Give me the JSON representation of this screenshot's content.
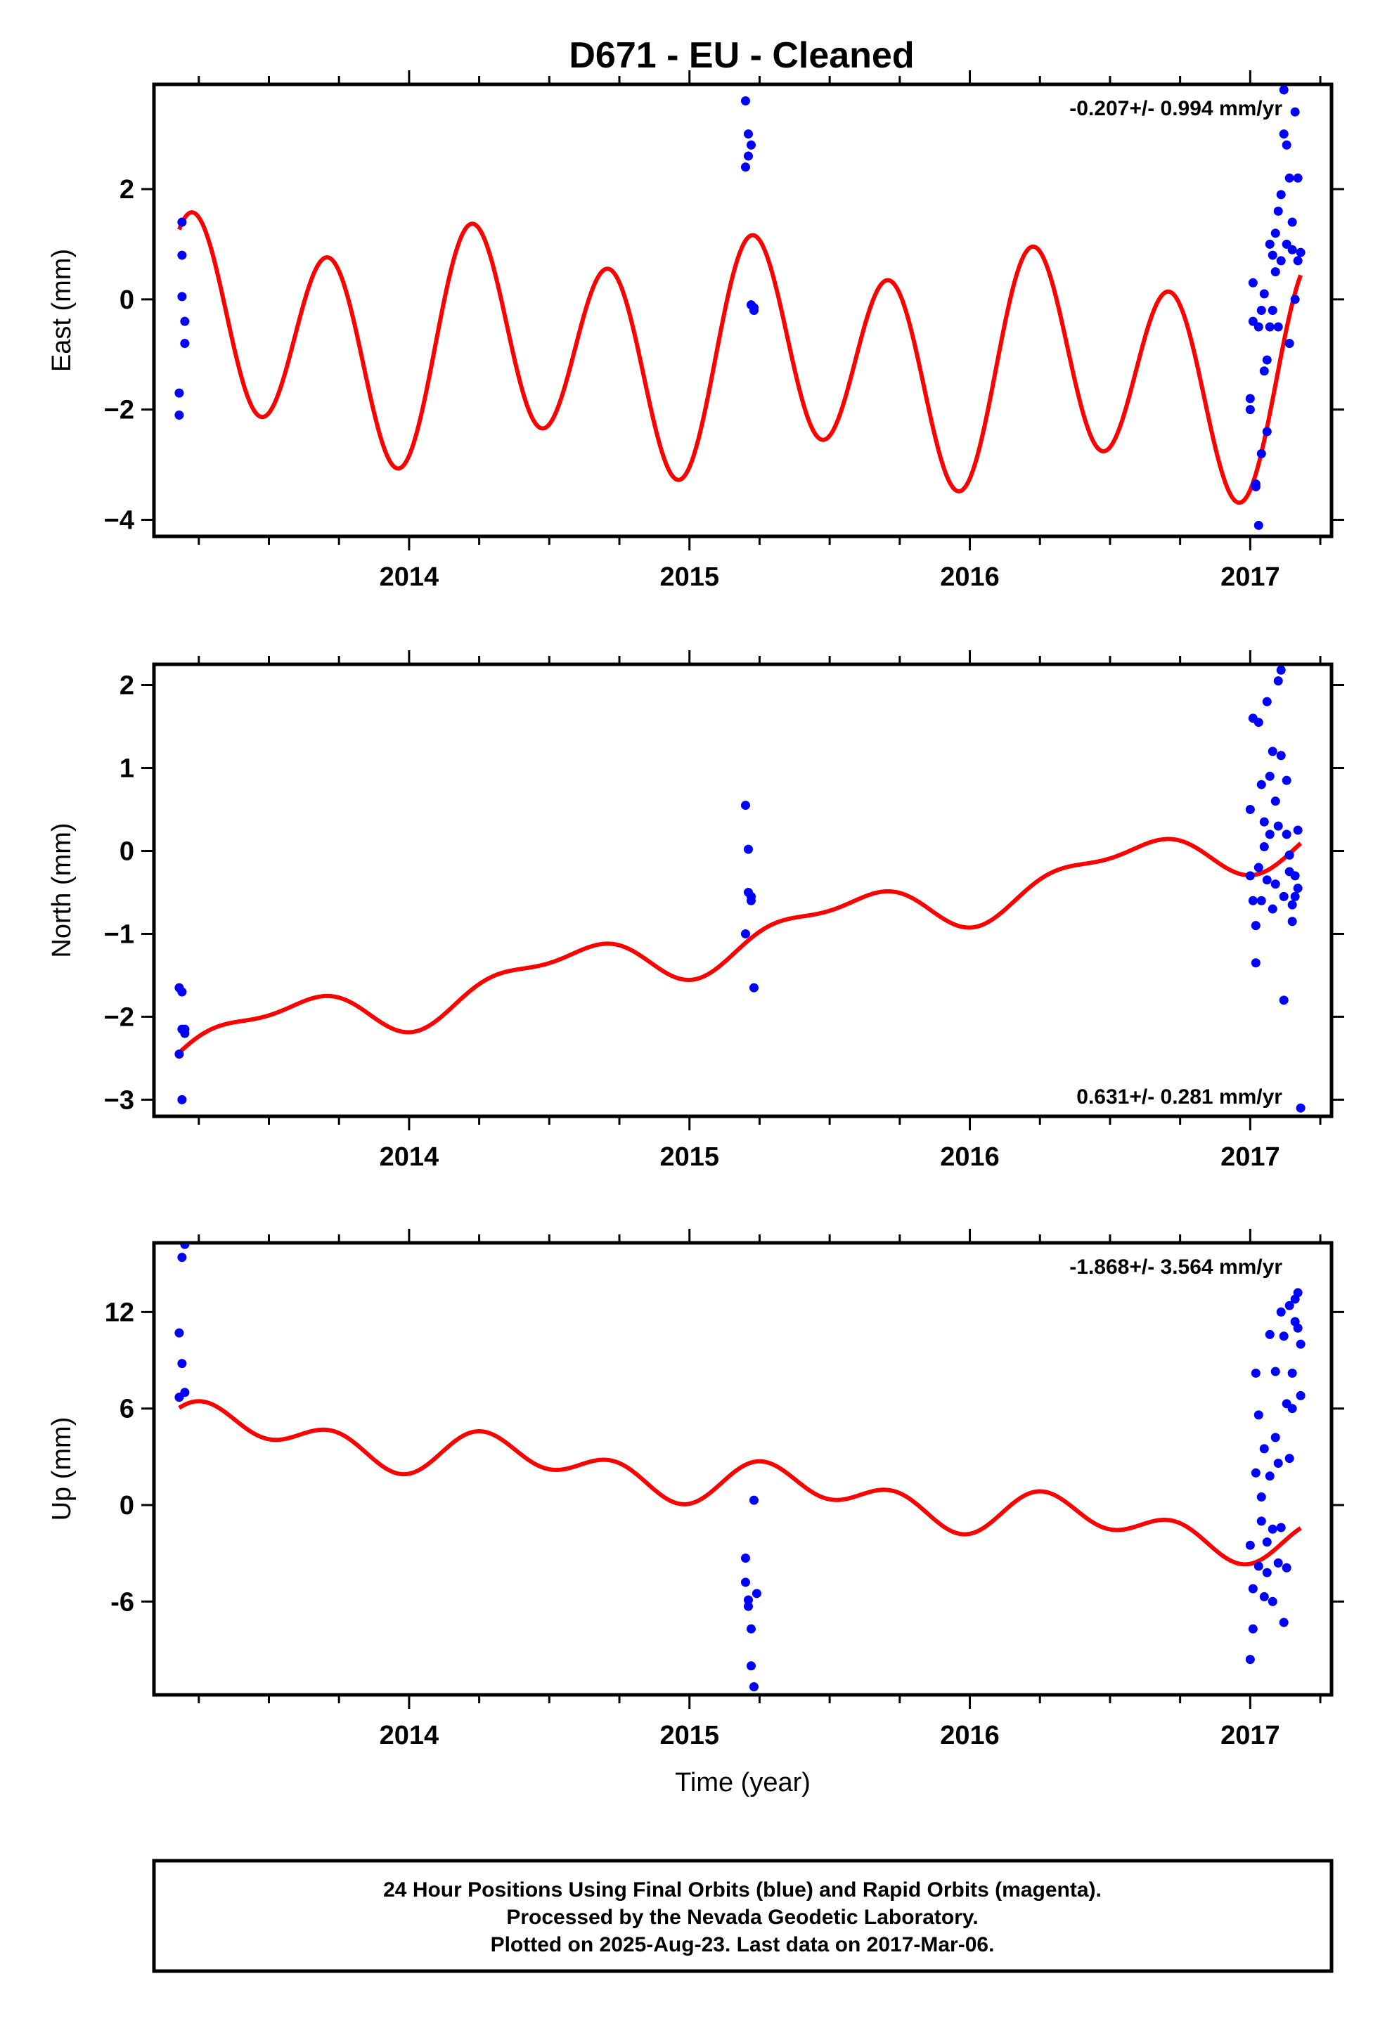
{
  "title": "D671  - EU - Cleaned",
  "colors": {
    "data": "#0000ff",
    "model": "#ff0000",
    "frame": "#000000"
  },
  "footer": {
    "lines": [
      "24 Hour Positions Using Final Orbits (blue) and Rapid Orbits (magenta).",
      "Processed by the Nevada Geodetic Laboratory.",
      "Plotted on 2025-Aug-23. Last data on 2017-Mar-06."
    ]
  },
  "chart_data": [
    {
      "type": "scatter",
      "name": "east",
      "ylabel": "East (mm)",
      "xlabel": "",
      "rate_text": "-0.207+/- 0.994 mm/yr",
      "rate_position": "top-right",
      "xlim": [
        2013.09,
        2017.29
      ],
      "ylim": [
        -4.3,
        3.9
      ],
      "xticks": [
        2014,
        2015,
        2016,
        2017
      ],
      "xtick_labels": [
        "2014",
        "2015",
        "2016",
        "2017"
      ],
      "yticks": [
        -4,
        -2,
        0,
        2
      ],
      "ytick_labels": [
        "−4",
        "−2",
        "0",
        "2"
      ],
      "observations": {
        "x": [
          2013.18,
          2013.18,
          2013.19,
          2013.19,
          2013.19,
          2013.2,
          2013.2,
          2015.2,
          2015.2,
          2015.21,
          2015.21,
          2015.22,
          2015.22,
          2015.23,
          2015.23,
          2017.0,
          2017.0,
          2017.01,
          2017.01,
          2017.02,
          2017.02,
          2017.03,
          2017.03,
          2017.04,
          2017.04,
          2017.05,
          2017.05,
          2017.06,
          2017.06,
          2017.07,
          2017.07,
          2017.08,
          2017.08,
          2017.09,
          2017.09,
          2017.1,
          2017.1,
          2017.11,
          2017.11,
          2017.12,
          2017.12,
          2017.13,
          2017.13,
          2017.14,
          2017.14,
          2017.15,
          2017.15,
          2017.16,
          2017.16,
          2017.17,
          2017.17,
          2017.18
        ],
        "y": [
          -1.7,
          -2.1,
          1.4,
          0.8,
          0.05,
          -0.8,
          -0.4,
          3.6,
          2.4,
          3.0,
          2.6,
          2.8,
          -0.1,
          -0.2,
          -0.15,
          -1.8,
          -2.0,
          -0.4,
          0.3,
          -3.4,
          -3.35,
          -4.1,
          -0.5,
          -2.8,
          -0.2,
          -1.3,
          0.1,
          -1.1,
          -2.4,
          -0.5,
          1.0,
          -0.2,
          0.8,
          1.2,
          0.5,
          -0.5,
          1.6,
          1.9,
          0.7,
          3.8,
          3.0,
          2.8,
          1.0,
          2.2,
          -0.8,
          0.9,
          1.4,
          0.0,
          3.4,
          2.2,
          0.7,
          0.85
        ]
      },
      "model": {
        "offset": -1.05,
        "trend": -0.207,
        "t0": 2015.2,
        "components": [
          {
            "period": 0.5,
            "amplitude": 1.85,
            "phase": 1.35
          },
          {
            "period": 1.0,
            "amplitude": 0.55,
            "phase": 0.6
          }
        ],
        "x_start": 2013.18,
        "x_end": 2017.18
      }
    },
    {
      "type": "scatter",
      "name": "north",
      "ylabel": "North (mm)",
      "xlabel": "",
      "rate_text": "0.631+/- 0.281 mm/yr",
      "rate_position": "bottom-right",
      "xlim": [
        2013.09,
        2017.29
      ],
      "ylim": [
        -3.2,
        2.25
      ],
      "xticks": [
        2014,
        2015,
        2016,
        2017
      ],
      "xtick_labels": [
        "2014",
        "2015",
        "2016",
        "2017"
      ],
      "yticks": [
        -3,
        -2,
        -1,
        0,
        1,
        2
      ],
      "ytick_labels": [
        "−3",
        "−2",
        "−1",
        "0",
        "1",
        "2"
      ],
      "observations": {
        "x": [
          2013.18,
          2013.18,
          2013.19,
          2013.19,
          2013.19,
          2013.2,
          2013.2,
          2015.2,
          2015.2,
          2015.21,
          2015.21,
          2015.22,
          2015.22,
          2015.23,
          2017.0,
          2017.0,
          2017.01,
          2017.01,
          2017.02,
          2017.02,
          2017.03,
          2017.03,
          2017.04,
          2017.04,
          2017.05,
          2017.05,
          2017.06,
          2017.06,
          2017.07,
          2017.07,
          2017.08,
          2017.08,
          2017.09,
          2017.09,
          2017.1,
          2017.1,
          2017.11,
          2017.11,
          2017.12,
          2017.12,
          2017.13,
          2017.13,
          2017.14,
          2017.14,
          2017.15,
          2017.15,
          2017.16,
          2017.16,
          2017.17,
          2017.17,
          2017.18
        ],
        "y": [
          -1.65,
          -2.45,
          -2.15,
          -3.0,
          -1.7,
          -2.15,
          -2.2,
          0.55,
          -1.0,
          0.02,
          -0.5,
          -0.6,
          -0.55,
          -1.65,
          0.5,
          -0.3,
          1.6,
          -0.6,
          -0.9,
          -1.35,
          1.55,
          -0.2,
          0.8,
          -0.6,
          0.35,
          0.05,
          1.8,
          -0.35,
          0.9,
          0.2,
          1.2,
          -0.7,
          0.6,
          -0.4,
          2.05,
          0.3,
          2.18,
          1.15,
          -0.55,
          -1.8,
          0.85,
          0.2,
          -0.25,
          -0.05,
          -0.65,
          -0.85,
          -0.3,
          -0.55,
          -0.45,
          0.25,
          -3.1
        ]
      },
      "model": {
        "offset": -1.05,
        "trend": 0.631,
        "t0": 2015.2,
        "components": [
          {
            "period": 0.5,
            "amplitude": 0.12,
            "phase": 0.9
          },
          {
            "period": 1.0,
            "amplitude": 0.27,
            "phase": -0.6
          }
        ],
        "x_start": 2013.18,
        "x_end": 2017.18
      }
    },
    {
      "type": "scatter",
      "name": "up",
      "ylabel": "Up (mm)",
      "xlabel": "Time (year)",
      "rate_text": "-1.868+/- 3.564 mm/yr",
      "rate_position": "top-right",
      "xlim": [
        2013.09,
        2017.29
      ],
      "ylim": [
        -11.8,
        16.3
      ],
      "xticks": [
        2014,
        2015,
        2016,
        2017
      ],
      "xtick_labels": [
        "2014",
        "2015",
        "2016",
        "2017"
      ],
      "yticks": [
        -6,
        0,
        6,
        12
      ],
      "ytick_labels": [
        "-6",
        "0",
        "6",
        "12"
      ],
      "observations": {
        "x": [
          2013.18,
          2013.18,
          2013.19,
          2013.19,
          2013.2,
          2013.2,
          2015.2,
          2015.2,
          2015.21,
          2015.21,
          2015.22,
          2015.22,
          2015.23,
          2015.23,
          2015.24,
          2017.0,
          2017.0,
          2017.01,
          2017.01,
          2017.02,
          2017.02,
          2017.03,
          2017.03,
          2017.04,
          2017.04,
          2017.05,
          2017.05,
          2017.06,
          2017.06,
          2017.07,
          2017.07,
          2017.08,
          2017.08,
          2017.09,
          2017.09,
          2017.1,
          2017.1,
          2017.11,
          2017.11,
          2017.12,
          2017.12,
          2017.13,
          2017.13,
          2017.14,
          2017.14,
          2017.15,
          2017.15,
          2017.16,
          2017.16,
          2017.17,
          2017.17,
          2017.18,
          2017.18
        ],
        "y": [
          10.7,
          6.7,
          15.4,
          8.8,
          16.2,
          7.0,
          -3.3,
          -4.8,
          -5.9,
          -6.3,
          -7.7,
          -10.0,
          -11.3,
          0.3,
          -5.5,
          -2.5,
          -9.6,
          -5.2,
          -7.7,
          8.2,
          2.0,
          -3.8,
          5.6,
          -1.0,
          0.5,
          -5.7,
          3.5,
          -2.3,
          -4.2,
          10.6,
          1.8,
          -6.0,
          -1.5,
          8.3,
          4.2,
          2.6,
          -3.6,
          12.0,
          -1.4,
          10.5,
          -7.3,
          6.3,
          -3.9,
          12.4,
          2.9,
          8.2,
          6.0,
          11.4,
          12.8,
          11.0,
          13.2,
          10.0,
          6.8
        ]
      },
      "model": {
        "offset": 1.3,
        "trend": -1.868,
        "t0": 2015.2,
        "components": [
          {
            "period": 0.5,
            "amplitude": 1.0,
            "phase": 1.1
          },
          {
            "period": 1.0,
            "amplitude": 0.8,
            "phase": 0.4
          }
        ],
        "x_start": 2013.18,
        "x_end": 2017.18
      }
    }
  ]
}
